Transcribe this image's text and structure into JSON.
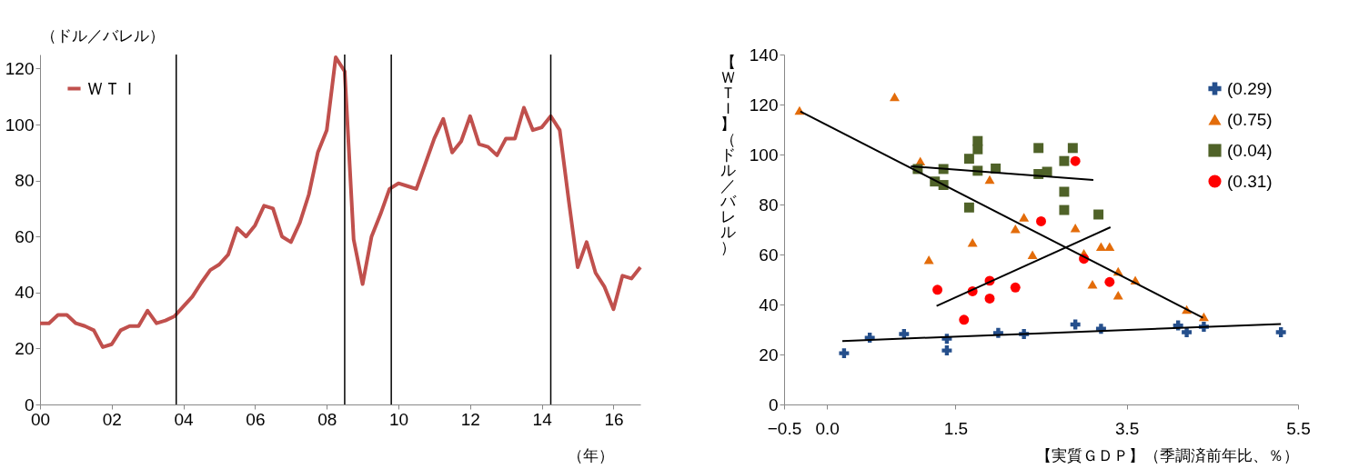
{
  "chart_data": [
    {
      "type": "line",
      "xlabel": "（年）",
      "ylabel": "（ドル／バレル）",
      "x": [
        0,
        0.25,
        0.5,
        0.75,
        1,
        1.25,
        1.5,
        1.75,
        2,
        2.25,
        2.5,
        2.75,
        3,
        3.25,
        3.5,
        3.75,
        4,
        4.25,
        4.5,
        4.75,
        5,
        5.25,
        5.5,
        5.75,
        6,
        6.25,
        6.5,
        6.75,
        7,
        7.25,
        7.5,
        7.75,
        8,
        8.25,
        8.5,
        8.75,
        9,
        9.25,
        9.5,
        9.75,
        10,
        10.25,
        10.5,
        10.75,
        11,
        11.25,
        11.5,
        11.75,
        12,
        12.25,
        12.5,
        12.75,
        13,
        13.25,
        13.5,
        13.75,
        14,
        14.25,
        14.5,
        14.75,
        15,
        15.25,
        15.5,
        15.75,
        16,
        16.25,
        16.5,
        16.75
      ],
      "series": [
        {
          "name": "ＷＴＩ",
          "color": "#c0504d",
          "values": [
            29,
            29,
            32,
            32,
            29,
            28,
            26.5,
            20.5,
            21.5,
            26.5,
            28,
            28,
            33.5,
            29,
            30,
            31.5,
            35,
            38.5,
            43.5,
            48,
            50,
            53.5,
            63,
            60,
            64,
            71,
            70,
            60,
            58,
            65,
            75,
            90,
            98,
            124,
            119,
            59,
            43,
            60,
            68,
            77,
            79,
            78,
            77,
            86,
            95,
            102,
            90,
            94,
            103,
            93,
            92,
            89,
            95,
            95,
            106,
            98,
            99,
            103,
            98,
            73,
            49,
            58,
            47,
            42,
            34,
            46,
            45,
            49
          ]
        }
      ],
      "xlim": [
        0,
        16.75
      ],
      "ylim": [
        0,
        125
      ],
      "xticks": [
        {
          "value": 0,
          "label": "00"
        },
        {
          "value": 2,
          "label": "02"
        },
        {
          "value": 4,
          "label": "04"
        },
        {
          "value": 6,
          "label": "06"
        },
        {
          "value": 8,
          "label": "08"
        },
        10,
        12,
        14,
        16
      ],
      "yticks": [
        0,
        20,
        40,
        60,
        80,
        100,
        120
      ],
      "ref_lines": [
        {
          "axis": "x",
          "value": 3.8,
          "color": "#000000"
        },
        {
          "axis": "x",
          "value": 8.5,
          "color": "#000000"
        },
        {
          "axis": "x",
          "value": 9.8,
          "color": "#000000"
        },
        {
          "axis": "x",
          "value": 14.25,
          "color": "#000000"
        }
      ],
      "legend": "top left",
      "grid": false
    },
    {
      "type": "scatter",
      "xlabel": "【実質ＧＤＰ】（季調済前年比、％）",
      "ylabel": "【ＷＴＩ】（ドル／バレル）",
      "series": [
        {
          "name": "(0.29)",
          "color": "#254f8c",
          "marker": "cross",
          "x": [
            0.2,
            0.5,
            0.9,
            1.4,
            1.4,
            2.0,
            2.3,
            2.9,
            3.2,
            4.1,
            4.2,
            4.4,
            5.3
          ],
          "values": [
            20.5,
            26.7,
            28.2,
            26.3,
            21.6,
            28.6,
            28.2,
            32,
            30.3,
            31.6,
            28.9,
            31.1,
            28.9
          ]
        },
        {
          "name": "(0.75)",
          "color": "#e36c0a",
          "marker": "triangle",
          "x": [
            -0.32,
            0.79,
            1.09,
            1.9,
            1.7,
            1.19,
            2.2,
            2.3,
            2.4,
            2.9,
            3.0,
            3.1,
            3.2,
            3.3,
            3.4,
            3.4,
            3.6,
            4.2,
            4.4
          ],
          "values": [
            117.6,
            123.1,
            97.4,
            90,
            64.8,
            57.9,
            70.3,
            74.9,
            59.9,
            70.6,
            60.5,
            48.1,
            63.2,
            63.2,
            53.3,
            43.7,
            49.7,
            38,
            35.1
          ]
        },
        {
          "name": "(0.04)",
          "color": "#4f6228",
          "marker": "square",
          "x": [
            1.06,
            1.36,
            1.26,
            1.36,
            1.66,
            1.76,
            1.76,
            1.76,
            1.97,
            1.66,
            2.47,
            2.47,
            2.57,
            2.77,
            2.87,
            2.77,
            2.77,
            3.17
          ],
          "values": [
            94.2,
            94.2,
            89.2,
            87.8,
            98.3,
            105.4,
            102.1,
            93.5,
            94.4,
            78.8,
            102.6,
            92.2,
            93.1,
            97.4,
            102.6,
            85.1,
            77.8,
            76
          ]
        },
        {
          "name": "(0.31)",
          "color": "#ff0000",
          "marker": "circle",
          "x": [
            1.29,
            1.6,
            1.7,
            1.9,
            1.9,
            2.2,
            2.5,
            2.9,
            3.0,
            3.3
          ],
          "values": [
            45.9,
            33.9,
            45.3,
            49.5,
            42.4,
            46.8,
            73.3,
            97.4,
            58.3,
            49
          ]
        },
        {
          "type": "line",
          "color": "#000000",
          "x": [
            0.18,
            5.3
          ],
          "values": [
            25.4,
            32.2
          ]
        },
        {
          "type": "line",
          "color": "#000000",
          "x": [
            -0.31,
            4.39
          ],
          "values": [
            117.2,
            34.7
          ]
        },
        {
          "type": "line",
          "color": "#000000",
          "x": [
            0.98,
            3.11
          ],
          "values": [
            95.3,
            89.8
          ]
        },
        {
          "type": "line",
          "color": "#000000",
          "x": [
            1.28,
            3.31
          ],
          "values": [
            39.4,
            70.9
          ]
        }
      ],
      "xlim": [
        -0.5,
        5.5
      ],
      "ylim": [
        0,
        140
      ],
      "xticks": [
        -0.5,
        {
          "value": 0,
          "label": "0.0"
        },
        1.5,
        3.5,
        5.5
      ],
      "yticks": [
        0,
        20,
        40,
        60,
        80,
        100,
        120,
        140
      ],
      "legend": "top right",
      "grid": false
    }
  ]
}
